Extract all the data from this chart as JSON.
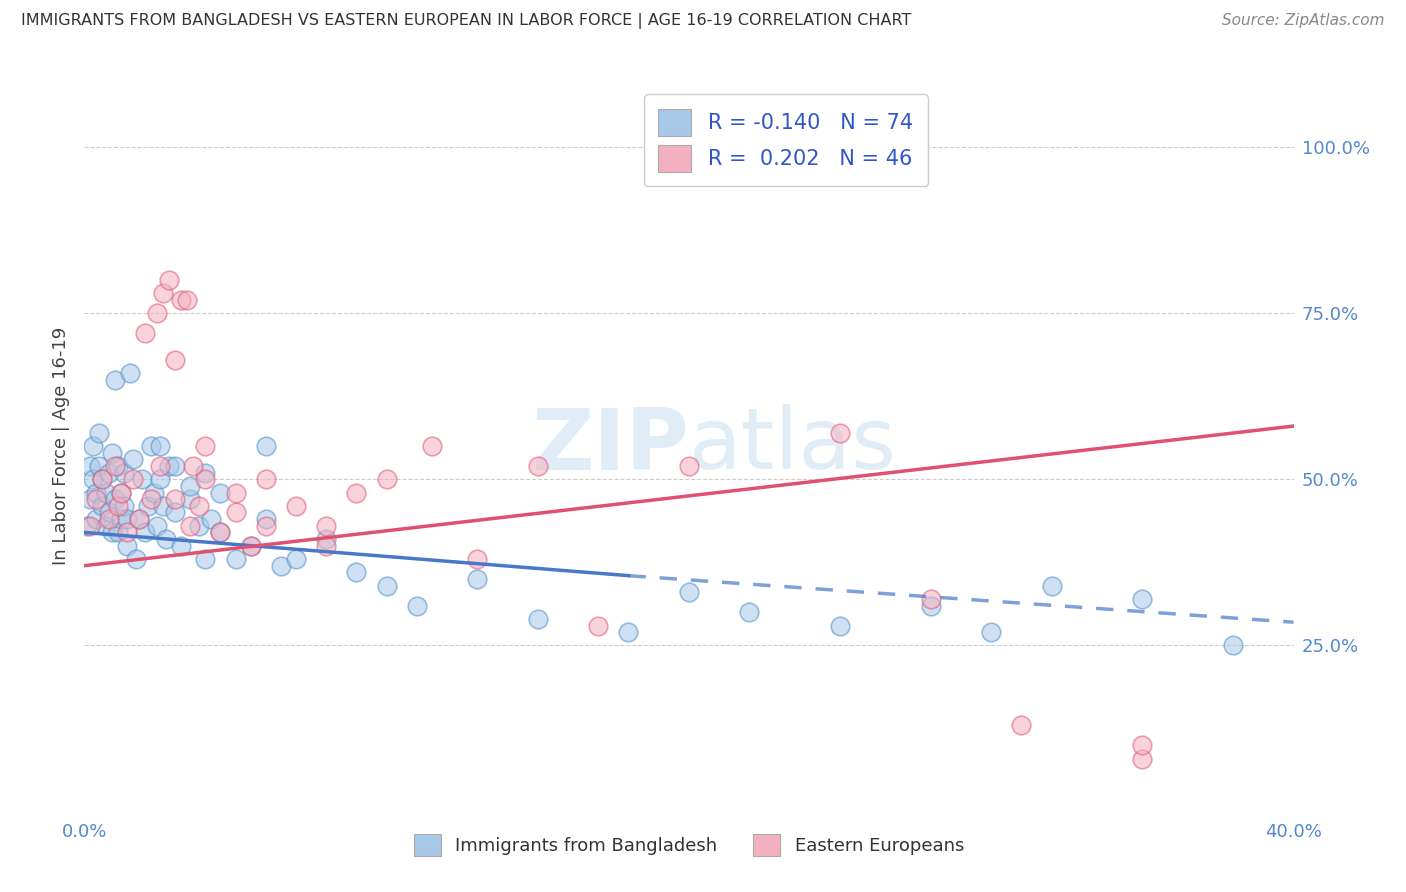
{
  "title": "IMMIGRANTS FROM BANGLADESH VS EASTERN EUROPEAN IN LABOR FORCE | AGE 16-19 CORRELATION CHART",
  "source": "Source: ZipAtlas.com",
  "ylabel": "In Labor Force | Age 16-19",
  "color_blue": "#a8c8e8",
  "color_pink": "#f4b0c0",
  "color_blue_dark": "#5090c8",
  "color_pink_dark": "#e05878",
  "color_blue_line": "#4878c8",
  "color_pink_line": "#e05070",
  "xlim_min": 0.0,
  "xlim_max": 0.4,
  "ylim_min": 0.0,
  "ylim_max": 1.1,
  "x_tick_labels": [
    "0.0%",
    "40.0%"
  ],
  "x_tick_positions": [
    0.0,
    0.4
  ],
  "y_tick_labels": [
    "25.0%",
    "50.0%",
    "75.0%",
    "100.0%"
  ],
  "y_tick_positions": [
    0.25,
    0.5,
    0.75,
    1.0
  ],
  "blue_r": -0.14,
  "blue_n": 74,
  "pink_r": 0.202,
  "pink_n": 46,
  "blue_line_solid": [
    0.0,
    0.18,
    0.42,
    0.355
  ],
  "blue_line_dashed": [
    0.18,
    0.4,
    0.355,
    0.285
  ],
  "pink_line": [
    0.0,
    0.4,
    0.37,
    0.58
  ],
  "blue_scatter_x": [
    0.001,
    0.002,
    0.002,
    0.003,
    0.003,
    0.004,
    0.004,
    0.005,
    0.005,
    0.006,
    0.006,
    0.007,
    0.007,
    0.008,
    0.008,
    0.009,
    0.009,
    0.01,
    0.01,
    0.011,
    0.011,
    0.012,
    0.012,
    0.013,
    0.013,
    0.014,
    0.014,
    0.015,
    0.016,
    0.017,
    0.018,
    0.019,
    0.02,
    0.021,
    0.022,
    0.023,
    0.024,
    0.025,
    0.026,
    0.027,
    0.028,
    0.03,
    0.032,
    0.035,
    0.038,
    0.04,
    0.042,
    0.045,
    0.05,
    0.055,
    0.06,
    0.065,
    0.07,
    0.08,
    0.09,
    0.1,
    0.11,
    0.13,
    0.15,
    0.18,
    0.2,
    0.22,
    0.25,
    0.28,
    0.3,
    0.32,
    0.35,
    0.38,
    0.025,
    0.03,
    0.035,
    0.04,
    0.045,
    0.06
  ],
  "blue_scatter_y": [
    0.43,
    0.47,
    0.52,
    0.5,
    0.55,
    0.44,
    0.48,
    0.52,
    0.57,
    0.46,
    0.5,
    0.43,
    0.48,
    0.51,
    0.45,
    0.54,
    0.42,
    0.47,
    0.65,
    0.52,
    0.42,
    0.48,
    0.44,
    0.51,
    0.46,
    0.4,
    0.44,
    0.66,
    0.53,
    0.38,
    0.44,
    0.5,
    0.42,
    0.46,
    0.55,
    0.48,
    0.43,
    0.5,
    0.46,
    0.41,
    0.52,
    0.45,
    0.4,
    0.47,
    0.43,
    0.38,
    0.44,
    0.42,
    0.38,
    0.4,
    0.44,
    0.37,
    0.38,
    0.41,
    0.36,
    0.34,
    0.31,
    0.35,
    0.29,
    0.27,
    0.33,
    0.3,
    0.28,
    0.31,
    0.27,
    0.34,
    0.32,
    0.25,
    0.55,
    0.52,
    0.49,
    0.51,
    0.48,
    0.55
  ],
  "pink_scatter_x": [
    0.002,
    0.004,
    0.006,
    0.008,
    0.01,
    0.011,
    0.012,
    0.014,
    0.016,
    0.018,
    0.02,
    0.022,
    0.024,
    0.026,
    0.028,
    0.03,
    0.032,
    0.034,
    0.036,
    0.038,
    0.04,
    0.045,
    0.05,
    0.055,
    0.06,
    0.07,
    0.08,
    0.09,
    0.1,
    0.115,
    0.13,
    0.15,
    0.17,
    0.2,
    0.25,
    0.28,
    0.31,
    0.35,
    0.025,
    0.03,
    0.035,
    0.04,
    0.05,
    0.06,
    0.08,
    0.35
  ],
  "pink_scatter_y": [
    0.43,
    0.47,
    0.5,
    0.44,
    0.52,
    0.46,
    0.48,
    0.42,
    0.5,
    0.44,
    0.72,
    0.47,
    0.75,
    0.78,
    0.8,
    0.68,
    0.77,
    0.77,
    0.52,
    0.46,
    0.5,
    0.42,
    0.45,
    0.4,
    0.5,
    0.46,
    0.43,
    0.48,
    0.5,
    0.55,
    0.38,
    0.52,
    0.28,
    0.52,
    0.57,
    0.32,
    0.13,
    0.08,
    0.52,
    0.47,
    0.43,
    0.55,
    0.48,
    0.43,
    0.4,
    0.1
  ]
}
